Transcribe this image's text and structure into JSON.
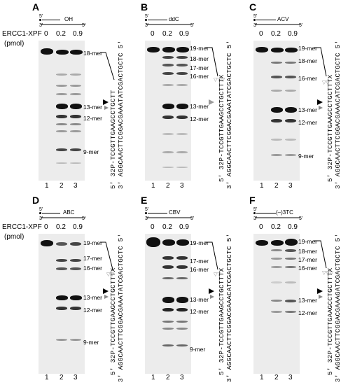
{
  "figure": {
    "enzyme_label": "ERCC1-XPF",
    "pmol_label": "(pmol)",
    "concentrations": [
      "0",
      "0.2",
      "0.9"
    ],
    "lanes": [
      "1",
      "2",
      "3"
    ],
    "prime5": "5'",
    "prime3": "3'",
    "panels": [
      {
        "letter": "A",
        "compound": "OH",
        "markers": [
          "18-mer",
          "13-mer",
          "12-mer",
          "9-mer"
        ],
        "top_strand": "5' 32P-TCCGTTGAAGCCTGCTT",
        "bottom_strand": "3' AGGCAACTTCGGACGAAATATCGACTGCTC 5'"
      },
      {
        "letter": "B",
        "compound": "ddC",
        "markers": [
          "19-mer",
          "18-mer",
          "17-mer",
          "16-mer",
          "13-mer",
          "12-mer"
        ],
        "top_strand": "5' 32P-TCCGTTGAAGCCTGCTTTX",
        "bottom_strand": "3' AGGCAACTTCGGACGAAATATCGACTGCTC 5'"
      },
      {
        "letter": "C",
        "compound": "ACV",
        "markers": [
          "19-mer",
          "18-mer",
          "16-mer",
          "13-mer",
          "12-mer",
          "9-mer"
        ],
        "top_strand": "5' 32P-TCCGTTGAAGCCTGCTTTX",
        "bottom_strand": "3' AGGCAACTTCGGACGAAACATCGACTGCTC 5'"
      },
      {
        "letter": "D",
        "compound": "ABC",
        "markers": [
          "19-mer",
          "17-mer",
          "16-mer",
          "13-mer",
          "12-mer",
          "9-mer"
        ],
        "top_strand": "5' 32P-TCCGTTGAAGCCTGCTTTX",
        "bottom_strand": "3' AGGCAACTTCGGACGAAATATCGACTGCTC 5'"
      },
      {
        "letter": "E",
        "compound": "CBV",
        "markers": [
          "19-mer",
          "17-mer",
          "16-mer",
          "13-mer",
          "12-mer",
          "9-mer"
        ],
        "top_strand": "5' 32P-TCCGTTGAAGCCTGCTTTX",
        "bottom_strand": "3' AGGCAACTTCGGACGAAACATCGACTGCTC 5'"
      },
      {
        "letter": "F",
        "compound": "(–)3TC",
        "markers": [
          "19-mer",
          "18-mer",
          "17-mer",
          "16-mer",
          "13-mer",
          "12-mer"
        ],
        "top_strand": "5' 32P-TCCGTTGAAGCCTGCTTTX",
        "bottom_strand": "3' AGGCAACTTCGGACGAAAGATCGACTGCTC 5'"
      }
    ]
  }
}
